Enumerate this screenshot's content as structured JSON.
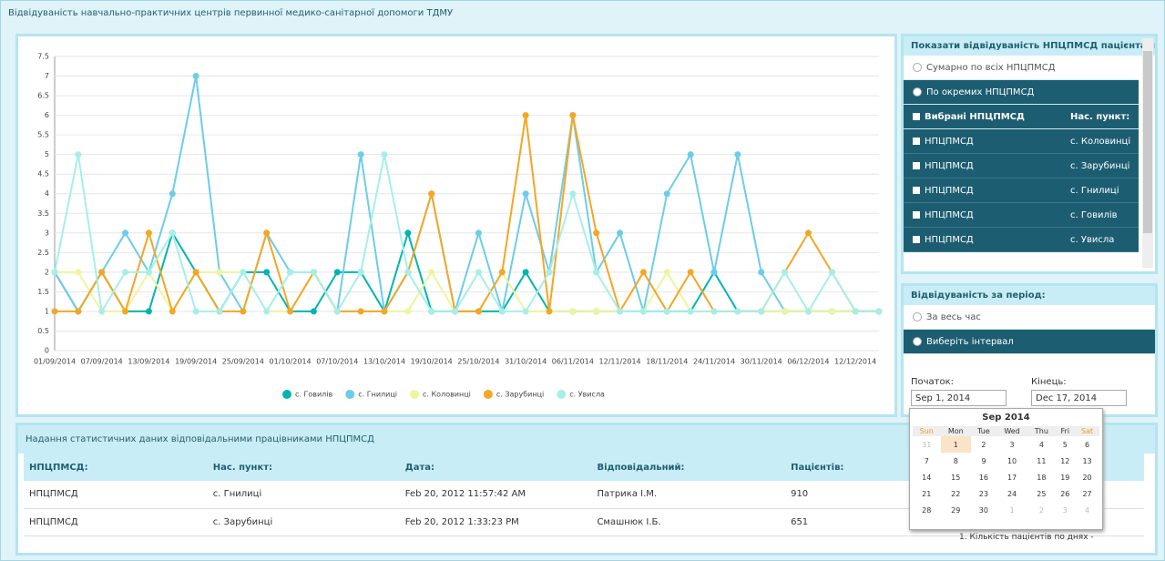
{
  "header": {
    "title": "Відвідуваність навчально-практичних центрів первинної медико-санітарної допомоги ТДМУ"
  },
  "chart_data": {
    "type": "line",
    "categories": [
      "01/09/2014",
      null,
      "07/09/2014",
      null,
      "13/09/2014",
      null,
      "19/09/2014",
      null,
      "25/09/2014",
      null,
      "01/10/2014",
      null,
      "07/10/2014",
      null,
      "13/10/2014",
      null,
      "19/10/2014",
      null,
      "25/10/2014",
      null,
      "31/10/2014",
      null,
      "06/11/2014",
      null,
      "12/11/2014",
      null,
      "18/11/2014",
      null,
      "24/11/2014",
      null,
      "30/11/2014",
      null,
      "06/12/2014",
      null,
      "12/12/2014",
      null
    ],
    "series": [
      {
        "name": "с. Говилів",
        "color": "#00b5b0",
        "values": [
          2,
          1,
          2,
          1,
          1,
          3,
          2,
          1,
          2,
          2,
          1,
          1,
          2,
          2,
          1,
          3,
          1,
          1,
          1,
          1,
          2,
          1,
          1,
          1,
          1,
          1,
          1,
          1,
          2,
          1,
          1,
          1,
          1,
          1,
          1,
          1
        ]
      },
      {
        "name": "с. Гнилиці",
        "color": "#6ccde8",
        "values": [
          2,
          1,
          2,
          3,
          2,
          4,
          7,
          2,
          1,
          3,
          2,
          2,
          1,
          5,
          1,
          2,
          4,
          1,
          3,
          1,
          4,
          2,
          6,
          2,
          3,
          1,
          4,
          5,
          2,
          5,
          2,
          1,
          1,
          1,
          1,
          1
        ]
      },
      {
        "name": "с. Коловинці",
        "color": "#eef59c",
        "values": [
          2,
          2,
          1,
          1,
          2,
          1,
          2,
          2,
          2,
          1,
          1,
          2,
          1,
          1,
          1,
          1,
          2,
          1,
          1,
          2,
          1,
          1,
          1,
          1,
          1,
          1,
          2,
          1,
          1,
          1,
          1,
          1,
          1,
          1,
          1,
          1
        ]
      },
      {
        "name": "с. Зарубинці",
        "color": "#f5a623",
        "values": [
          1,
          1,
          2,
          1,
          3,
          1,
          2,
          1,
          1,
          3,
          1,
          2,
          1,
          1,
          1,
          2,
          4,
          1,
          1,
          2,
          6,
          1,
          6,
          3,
          1,
          2,
          1,
          2,
          1,
          1,
          1,
          2,
          3,
          2,
          1,
          1
        ]
      },
      {
        "name": "с. Увисла",
        "color": "#a6efe9",
        "values": [
          2,
          5,
          1,
          2,
          2,
          3,
          1,
          1,
          2,
          1,
          2,
          2,
          1,
          2,
          5,
          2,
          1,
          1,
          2,
          1,
          1,
          2,
          4,
          2,
          1,
          1,
          1,
          1,
          1,
          1,
          1,
          2,
          1,
          2,
          1,
          1
        ]
      }
    ],
    "ylim": [
      0,
      7.5
    ],
    "yticks": [
      0,
      0.5,
      1,
      1.5,
      2,
      2.5,
      3,
      3.5,
      4,
      4.5,
      5,
      5.5,
      6,
      6.5,
      7,
      7.5
    ],
    "grid": true
  },
  "filter": {
    "title": "Показати відвідуваність НПЦПМСД пацієнтами",
    "options": [
      "Сумарно по всіх НПЦПМСД",
      "По окремих НПЦПМСД"
    ],
    "columns": [
      "Вибрані НПЦПМСД",
      "Нас. пункт:"
    ],
    "rows": [
      [
        "НПЦПМСД",
        "с. Коловинці"
      ],
      [
        "НПЦПМСД",
        "с. Зарубинці"
      ],
      [
        "НПЦПМСД",
        "с. Гнилиці"
      ],
      [
        "НПЦПМСД",
        "с. Говилів"
      ],
      [
        "НПЦПМСД",
        "с. Увисла"
      ]
    ]
  },
  "period": {
    "title": "Відвідуваність за період:",
    "options": [
      "За весь час",
      "Виберіть інтервал"
    ],
    "start_label": "Початок:",
    "start": "Sep 1, 2014",
    "end_label": "Кінець:",
    "end": "Dec 17, 2014"
  },
  "calendar": {
    "month": "Sep 2014",
    "weekdays": [
      "Sun",
      "Mon",
      "Tue",
      "Wed",
      "Thu",
      "Fri",
      "Sat"
    ],
    "weeks": [
      [
        31,
        1,
        2,
        3,
        4,
        5,
        6
      ],
      [
        7,
        8,
        9,
        10,
        11,
        12,
        13
      ],
      [
        14,
        15,
        16,
        17,
        18,
        19,
        20
      ],
      [
        21,
        22,
        23,
        24,
        25,
        26,
        27
      ],
      [
        28,
        29,
        30,
        1,
        2,
        3,
        4
      ]
    ]
  },
  "table": {
    "title": "Надання статистичних даних відповідальними працівниками НПЦПМСД",
    "columns": [
      "НПЦПМСД:",
      "Нас. пункт:",
      "Дата:",
      "Відповідальний:",
      "Пацієнтів:"
    ],
    "rows": [
      [
        "НПЦПМСД",
        "с. Гнилиці",
        "Feb 20, 2012 11:57:42 AM",
        "Патрика І.М.",
        "910"
      ],
      [
        "НПЦПМСД",
        "с. Зарубинці",
        "Feb 20, 2012 1:33:23 PM",
        "Смашнюк І.Б.",
        "651"
      ]
    ],
    "note": "1. Кількість пацієнтів по днях -"
  }
}
